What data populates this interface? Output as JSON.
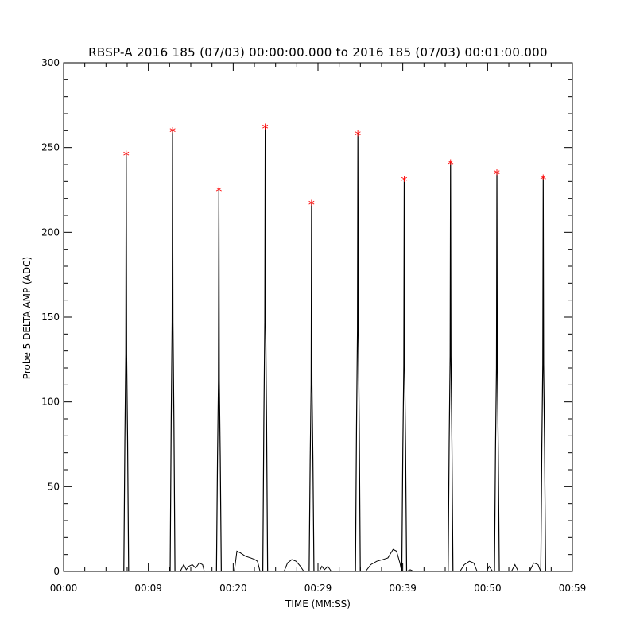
{
  "chart_data": {
    "type": "line",
    "title": "RBSP-A 2016 185 (07/03) 00:00:00.000 to 2016 185 (07/03) 00:01:00.000",
    "xlabel": "TIME (MM:SS)",
    "ylabel": "Probe 5 DELTA AMP (ADC)",
    "xlim": [
      0,
      59.3
    ],
    "ylim": [
      0,
      300
    ],
    "x_ticks": [
      {
        "value": 0,
        "label": "00:00"
      },
      {
        "value": 9.88,
        "label": "00:09"
      },
      {
        "value": 19.77,
        "label": "00:20"
      },
      {
        "value": 29.65,
        "label": "00:29"
      },
      {
        "value": 39.53,
        "label": "00:39"
      },
      {
        "value": 49.42,
        "label": "00:50"
      },
      {
        "value": 59.3,
        "label": "00:59"
      }
    ],
    "y_ticks": [
      0,
      50,
      100,
      150,
      200,
      250,
      300
    ],
    "x_minor_per_major": 4,
    "y_minor_step": 10,
    "grid": false,
    "series": [
      {
        "color": "#000000",
        "peaks": [
          {
            "x": 7.3,
            "peak": 246,
            "mid": 128
          },
          {
            "x": 12.7,
            "peak": 260,
            "mid": 147
          },
          {
            "x": 18.1,
            "peak": 225,
            "mid": 112
          },
          {
            "x": 23.5,
            "peak": 262,
            "mid": 147
          },
          {
            "x": 28.9,
            "peak": 217,
            "mid": 110
          },
          {
            "x": 34.3,
            "peak": 258,
            "mid": 142
          },
          {
            "x": 39.7,
            "peak": 231,
            "mid": 121
          },
          {
            "x": 45.1,
            "peak": 241,
            "mid": 127
          },
          {
            "x": 50.5,
            "peak": 235,
            "mid": 120
          },
          {
            "x": 55.9,
            "peak": 232,
            "mid": 122
          }
        ],
        "baseline_bumps": [
          {
            "x": [
              13.6,
              14.0,
              14.3,
              14.6,
              15.0,
              15.4,
              15.8,
              16.2,
              16.4
            ],
            "y": [
              0,
              4,
              1,
              3,
              4,
              2,
              5,
              4,
              0
            ]
          },
          {
            "x": [
              19.9,
              20.2,
              20.6,
              21.2,
              21.8,
              22.3,
              22.6,
              22.9
            ],
            "y": [
              0,
              12,
              11,
              9,
              8,
              7,
              6,
              0
            ]
          },
          {
            "x": [
              25.7,
              26.1,
              26.6,
              27.1,
              27.6,
              28.0
            ],
            "y": [
              0,
              5,
              7,
              6,
              3,
              0
            ]
          },
          {
            "x": [
              29.8,
              30.1,
              30.4,
              30.8,
              31.2
            ],
            "y": [
              0,
              3,
              1,
              3,
              0
            ]
          },
          {
            "x": [
              35.2,
              35.8,
              36.5,
              37.2,
              37.8,
              38.4,
              38.8,
              39.2,
              39.4
            ],
            "y": [
              0,
              4,
              6,
              7,
              8,
              13,
              12,
              5,
              0
            ]
          },
          {
            "x": [
              40.0,
              40.4,
              40.8
            ],
            "y": [
              0,
              1,
              0
            ]
          },
          {
            "x": [
              46.2,
              46.7,
              47.3,
              47.8,
              48.2
            ],
            "y": [
              0,
              4,
              6,
              5,
              0
            ]
          },
          {
            "x": [
              49.3,
              49.6,
              50.0
            ],
            "y": [
              0,
              3,
              0
            ]
          },
          {
            "x": [
              52.2,
              52.6,
              53.0
            ],
            "y": [
              0,
              4,
              0
            ]
          },
          {
            "x": [
              54.3,
              54.8,
              55.3,
              55.6
            ],
            "y": [
              0,
              5,
              4,
              0
            ]
          }
        ]
      }
    ],
    "markers": {
      "symbol": "*",
      "color": "#ff0000",
      "points": [
        {
          "x": 7.3,
          "y": 246
        },
        {
          "x": 12.7,
          "y": 260
        },
        {
          "x": 18.1,
          "y": 225
        },
        {
          "x": 23.5,
          "y": 262
        },
        {
          "x": 28.9,
          "y": 217
        },
        {
          "x": 34.3,
          "y": 258
        },
        {
          "x": 39.7,
          "y": 231
        },
        {
          "x": 45.1,
          "y": 241
        },
        {
          "x": 50.5,
          "y": 235
        },
        {
          "x": 55.9,
          "y": 232
        }
      ]
    }
  }
}
